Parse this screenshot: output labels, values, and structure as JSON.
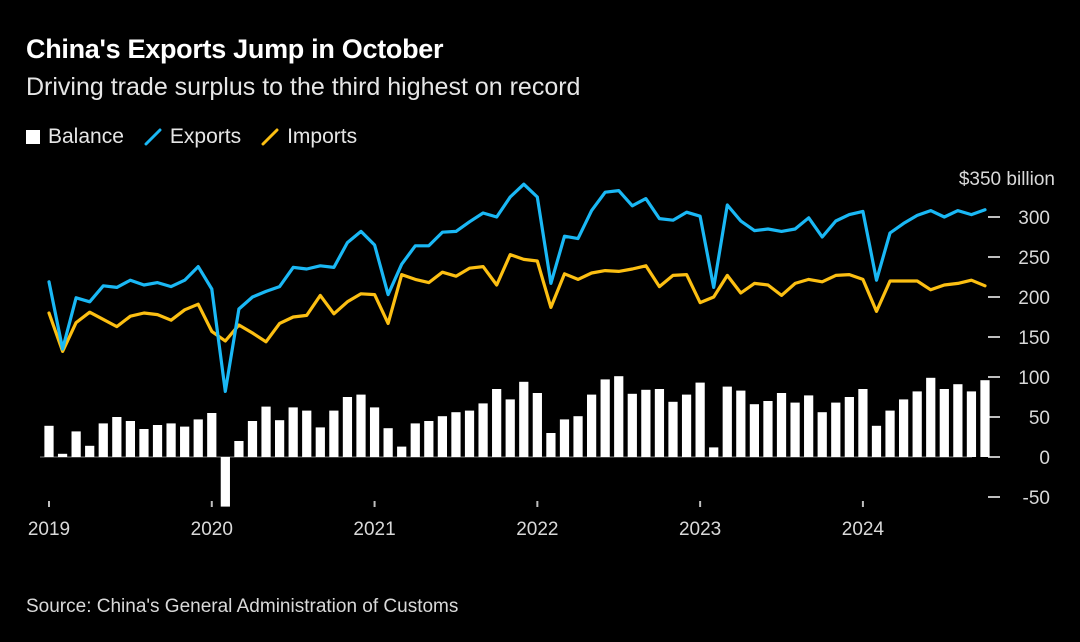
{
  "title": "China's Exports Jump in October",
  "subtitle": "Driving trade surplus to the third highest on record",
  "legend": {
    "balance": "Balance",
    "exports": "Exports",
    "imports": "Imports"
  },
  "colors": {
    "background": "#000000",
    "balance": "#ffffff",
    "exports": "#1ab8f5",
    "imports": "#fcbf12"
  },
  "source": "Source: China's General Administration of Customs",
  "chart_data": {
    "type": "bar",
    "unit_label": "$350 billion",
    "ylim": [
      -50,
      350
    ],
    "yticks": [
      -50,
      0,
      50,
      100,
      150,
      200,
      250,
      300
    ],
    "ytick_labels": [
      "-50",
      "0",
      "50",
      "100",
      "150",
      "200",
      "250",
      "300"
    ],
    "xticks": [
      "2019",
      "2020",
      "2021",
      "2022",
      "2023",
      "2024"
    ],
    "x_start": "2019-01",
    "x": [
      "2019-01",
      "2019-02",
      "2019-03",
      "2019-04",
      "2019-05",
      "2019-06",
      "2019-07",
      "2019-08",
      "2019-09",
      "2019-10",
      "2019-11",
      "2019-12",
      "2020-01",
      "2020-02",
      "2020-03",
      "2020-04",
      "2020-05",
      "2020-06",
      "2020-07",
      "2020-08",
      "2020-09",
      "2020-10",
      "2020-11",
      "2020-12",
      "2021-01",
      "2021-02",
      "2021-03",
      "2021-04",
      "2021-05",
      "2021-06",
      "2021-07",
      "2021-08",
      "2021-09",
      "2021-10",
      "2021-11",
      "2021-12",
      "2022-01",
      "2022-02",
      "2022-03",
      "2022-04",
      "2022-05",
      "2022-06",
      "2022-07",
      "2022-08",
      "2022-09",
      "2022-10",
      "2022-11",
      "2022-12",
      "2023-01",
      "2023-02",
      "2023-03",
      "2023-04",
      "2023-05",
      "2023-06",
      "2023-07",
      "2023-08",
      "2023-09",
      "2023-10",
      "2023-11",
      "2023-12",
      "2024-01",
      "2024-02",
      "2024-03",
      "2024-04",
      "2024-05",
      "2024-06",
      "2024-07",
      "2024-08",
      "2024-09",
      "2024-10"
    ],
    "series": [
      {
        "name": "Balance",
        "type": "bar",
        "values": [
          39,
          4,
          32,
          14,
          42,
          50,
          45,
          35,
          40,
          42,
          38,
          47,
          55,
          -62,
          20,
          45,
          63,
          46,
          62,
          58,
          37,
          58,
          75,
          78,
          62,
          36,
          13,
          42,
          45,
          51,
          56,
          58,
          67,
          85,
          72,
          94,
          80,
          30,
          47,
          51,
          78,
          97,
          101,
          79,
          84,
          85,
          69,
          78,
          93,
          12,
          88,
          83,
          66,
          70,
          80,
          68,
          77,
          56,
          68,
          75,
          85,
          39,
          58,
          72,
          82,
          99,
          85,
          91,
          82,
          96
        ]
      },
      {
        "name": "Exports",
        "type": "line",
        "values": [
          219,
          135,
          199,
          194,
          214,
          212,
          221,
          215,
          218,
          213,
          221,
          238,
          210,
          82,
          185,
          200,
          207,
          213,
          237,
          235,
          239,
          237,
          268,
          282,
          265,
          203,
          241,
          264,
          264,
          281,
          282,
          294,
          305,
          300,
          325,
          341,
          325,
          217,
          276,
          273,
          308,
          331,
          333,
          314,
          323,
          298,
          296,
          306,
          301,
          212,
          315,
          295,
          283,
          285,
          282,
          285,
          299,
          275,
          295,
          303,
          307,
          221,
          280,
          292,
          302,
          308,
          300,
          308,
          303,
          309
        ]
      },
      {
        "name": "Imports",
        "type": "line",
        "values": [
          180,
          132,
          168,
          181,
          172,
          163,
          176,
          180,
          178,
          171,
          184,
          191,
          157,
          145,
          165,
          155,
          144,
          167,
          175,
          177,
          202,
          179,
          194,
          204,
          203,
          167,
          228,
          222,
          218,
          231,
          226,
          236,
          238,
          215,
          253,
          247,
          245,
          187,
          229,
          222,
          230,
          233,
          232,
          235,
          239,
          213,
          227,
          228,
          193,
          200,
          227,
          205,
          217,
          215,
          202,
          217,
          222,
          219,
          227,
          228,
          222,
          182,
          220,
          220,
          220,
          209,
          215,
          217,
          221,
          214
        ]
      }
    ]
  }
}
